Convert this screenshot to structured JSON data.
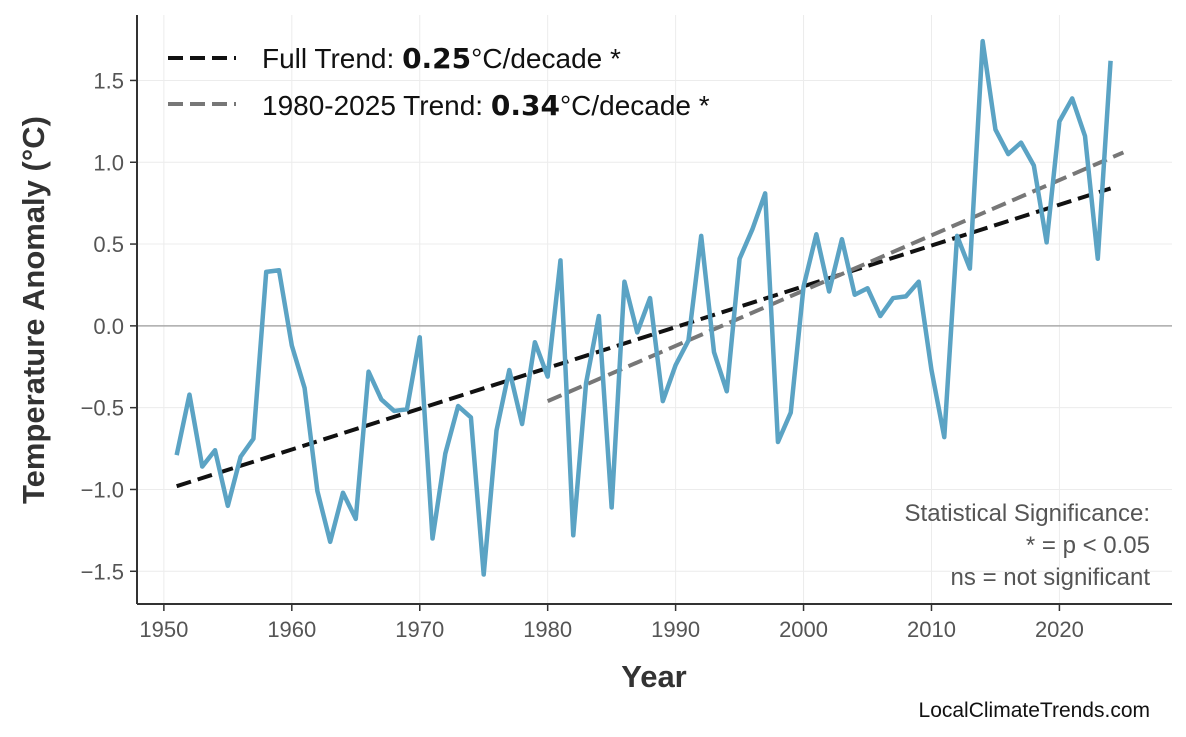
{
  "chart_data": {
    "type": "line",
    "title": "",
    "xlabel": "Year",
    "ylabel": "Temperature Anomaly (°C)",
    "xlim": [
      1947.9,
      2028.8
    ],
    "ylim": [
      -1.7,
      1.9
    ],
    "xticks": [
      1950,
      1960,
      1970,
      1980,
      1990,
      2000,
      2010,
      2020
    ],
    "yticks": [
      -1.5,
      -1.0,
      -0.5,
      0.0,
      0.5,
      1.0,
      1.5
    ],
    "ytick_labels": [
      "−1.5",
      "−1.0",
      "−0.5",
      "0.0",
      "0.5",
      "1.0",
      "1.5"
    ],
    "grid": true,
    "legend_placement": "top-left",
    "colors": {
      "anomaly": "#5ba3c4",
      "full_trend": "#111111",
      "recent_trend": "#777777",
      "zero_line": "#aaaaaa"
    },
    "series": [
      {
        "x": [
          1951,
          1952,
          1953,
          1954,
          1955,
          1956,
          1957,
          1958,
          1959,
          1960,
          1961,
          1962,
          1963,
          1964,
          1965,
          1966,
          1967,
          1968,
          1969,
          1970,
          1971,
          1972,
          1973,
          1974,
          1975,
          1976,
          1977,
          1978,
          1979,
          1980,
          1981,
          1982,
          1983,
          1984,
          1985,
          1986,
          1987,
          1988,
          1989,
          1990,
          1991,
          1992,
          1993,
          1994,
          1995,
          1996,
          1997,
          1998,
          1999,
          2000,
          2001,
          2002,
          2003,
          2004,
          2005,
          2006,
          2007,
          2008,
          2009,
          2010,
          2011,
          2012,
          2013,
          2014,
          2015,
          2016,
          2017,
          2018,
          2019,
          2020,
          2021,
          2022,
          2023,
          2024
        ],
        "values": [
          -0.79,
          -0.42,
          -0.86,
          -0.76,
          -1.1,
          -0.8,
          -0.69,
          0.33,
          0.34,
          -0.12,
          -0.38,
          -1.01,
          -1.32,
          -1.02,
          -1.18,
          -0.28,
          -0.45,
          -0.52,
          -0.51,
          -0.07,
          -1.3,
          -0.78,
          -0.49,
          -0.56,
          -1.52,
          -0.64,
          -0.27,
          -0.6,
          -0.1,
          -0.31,
          0.4,
          -1.28,
          -0.35,
          0.06,
          -1.11,
          0.27,
          -0.04,
          0.17,
          -0.46,
          -0.24,
          -0.09,
          0.55,
          -0.16,
          -0.4,
          0.41,
          0.59,
          0.81,
          -0.71,
          -0.53,
          0.24,
          0.56,
          0.21,
          0.53,
          0.19,
          0.23,
          0.06,
          0.17,
          0.18,
          0.27,
          -0.27,
          -0.68,
          0.55,
          0.35,
          1.74,
          1.2,
          1.05,
          1.12,
          0.98,
          0.51,
          1.25,
          1.39,
          1.16,
          0.41,
          1.62
        ]
      }
    ],
    "trends": [
      {
        "name_prefix": "Full Trend: ",
        "rate": "0.25",
        "suffix": "°C/decade *",
        "x": [
          1951,
          2024
        ],
        "y": [
          -0.98,
          0.84
        ]
      },
      {
        "name_prefix": "1980-2025 Trend: ",
        "rate": "0.34",
        "suffix": "°C/decade *",
        "x": [
          1980,
          2025
        ],
        "y": [
          -0.46,
          1.06
        ]
      }
    ],
    "annotation": [
      "Statistical Significance:",
      "* = p < 0.05",
      "ns = not significant"
    ]
  },
  "source": "LocalClimateTrends.com"
}
